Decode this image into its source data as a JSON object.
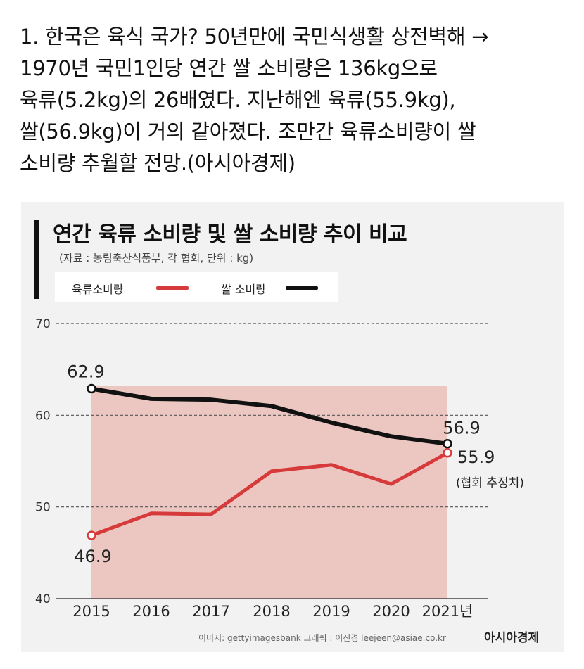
{
  "post": {
    "lines": [
      "1. 한국은 육식 국가? 50년만에 국민식생활 상전벽해 →",
      "1970년 국민1인당 연간 쌀 소비량은 136kg으로",
      "육류(5.2kg)의 26배였다. 지난해엔 육류(55.9kg),",
      "쌀(56.9kg)이 거의 같아졌다. 조만간 육류소비량이 쌀",
      "소비량 추월할 전망.(아시아경제)"
    ]
  },
  "credit": "이미지: gettyimagesbank   그래픽 : 이진경 leejeen@asiae.co.kr",
  "brand": "아시아경제",
  "chart_data": {
    "type": "line",
    "title": "연간 육류 소비량 및 쌀 소비량 추이 비교",
    "subtitle": "(자료 : 농림축산식품부, 각 협회, 단위 : kg)",
    "categories": [
      "2015",
      "2016",
      "2017",
      "2018",
      "2019",
      "2020",
      "2021년"
    ],
    "series": [
      {
        "name": "육류소비량",
        "color": "#d63a3a",
        "values": [
          46.9,
          49.3,
          49.2,
          53.9,
          54.6,
          52.5,
          55.9
        ]
      },
      {
        "name": "쌀 소비량",
        "color": "#111111",
        "values": [
          62.9,
          61.8,
          61.7,
          61.0,
          59.2,
          57.7,
          56.9
        ]
      }
    ],
    "ylim": [
      40,
      70
    ],
    "yticks": [
      40,
      50,
      60,
      70
    ],
    "grid": true,
    "legend": "top-left",
    "annotations": [
      {
        "text": "62.9",
        "series": 1,
        "index": 0
      },
      {
        "text": "46.9",
        "series": 0,
        "index": 0
      },
      {
        "text": "56.9",
        "series": 1,
        "index": 6
      },
      {
        "text": "55.9",
        "series": 0,
        "index": 6
      },
      {
        "text": "(협회 추정치)",
        "series": 0,
        "index": 6
      }
    ],
    "background_fill": "#e9b7b0",
    "grid_color": "#555555"
  }
}
